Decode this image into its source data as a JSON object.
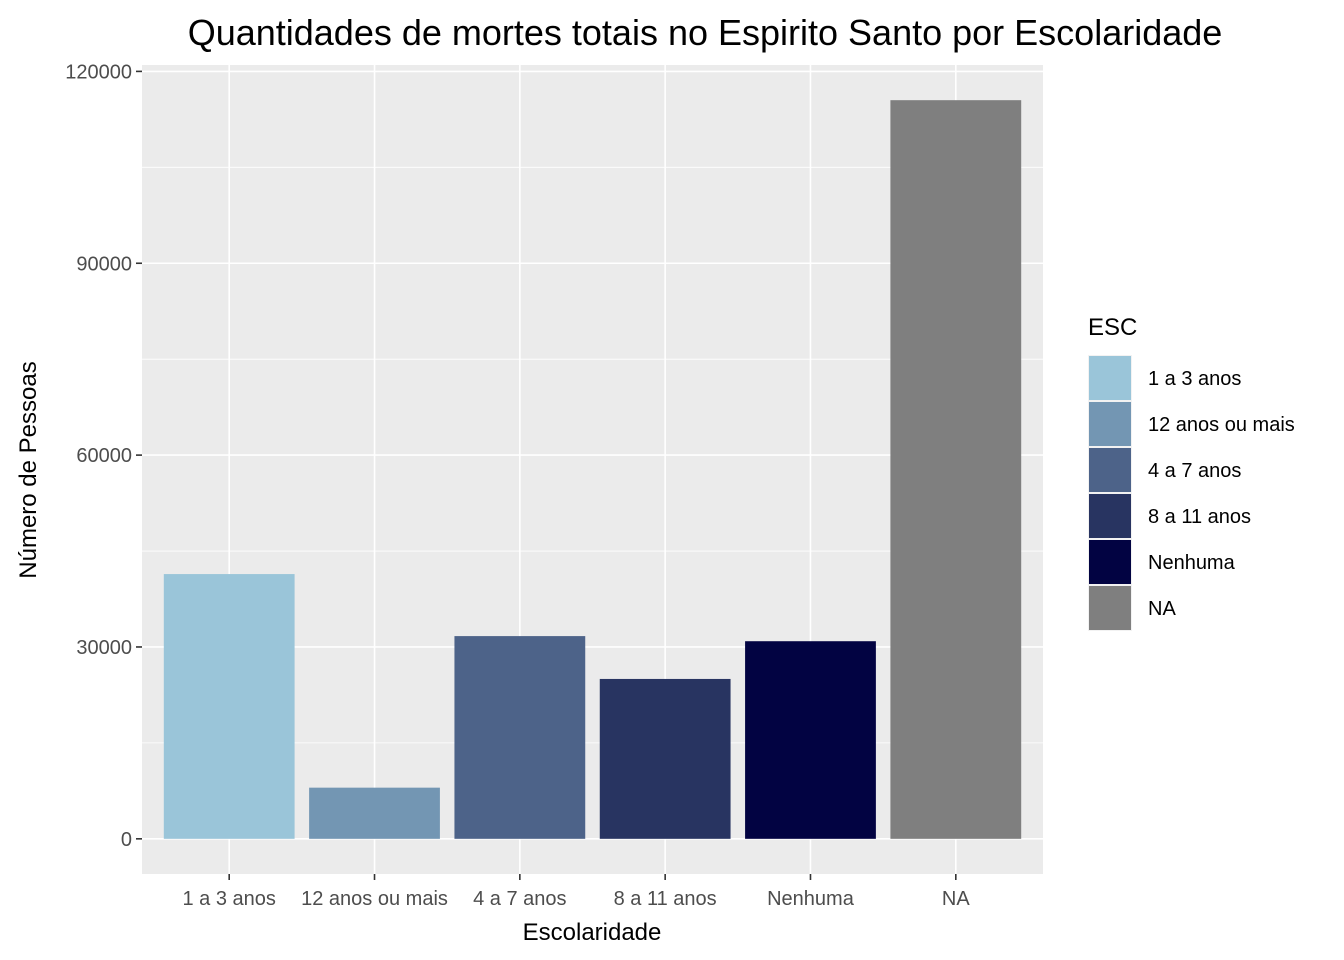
{
  "chart_data": {
    "type": "bar",
    "title": "Quantidades de mortes totais no Espirito Santo por Escolaridade",
    "xlabel": "Escolaridade",
    "ylabel": "Número de Pessoas",
    "categories": [
      "1 a 3 anos",
      "12 anos ou mais",
      "4 a 7 anos",
      "8 a 11 anos",
      "Nenhuma",
      "NA"
    ],
    "values": [
      41400,
      8000,
      31700,
      25000,
      30900,
      115500
    ],
    "colors": [
      "#9ac5d9",
      "#7396b3",
      "#4d6389",
      "#283461",
      "#020342",
      "#7f7f7f"
    ],
    "ylim": [
      -5500,
      121000
    ],
    "yticks": [
      0,
      30000,
      60000,
      90000,
      120000
    ],
    "ytick_labels": [
      "0",
      "30000",
      "60000",
      "90000",
      "120000"
    ],
    "grid": true,
    "panel_background": "#ebebeb",
    "legend": {
      "title": "ESC",
      "position": "right",
      "entries": [
        "1 a 3 anos",
        "12 anos ou mais",
        "4 a 7 anos",
        "8 a 11 anos",
        "Nenhuma",
        "NA"
      ]
    }
  }
}
